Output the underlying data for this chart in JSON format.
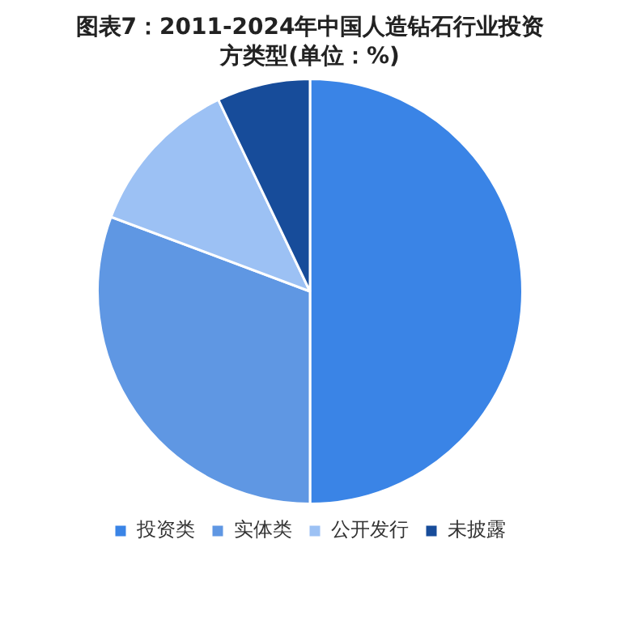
{
  "chart_data": {
    "type": "pie",
    "title": "图表7：2011-2024年中国人造钻石行业投资方类型(单位：%)",
    "categories": [
      "投资类",
      "实体类",
      "公开发行",
      "未披露"
    ],
    "values": [
      50,
      30.7,
      12.2,
      7.1
    ],
    "colors": [
      "#3a84e6",
      "#5f97e3",
      "#9cc1f4",
      "#174c9a"
    ],
    "legend": "bottom"
  }
}
